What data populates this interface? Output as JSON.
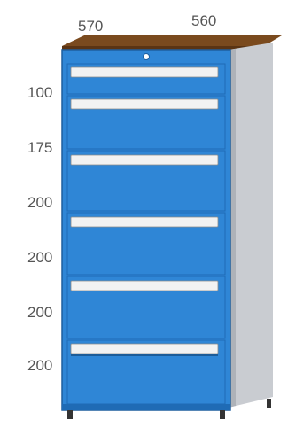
{
  "dimensions": {
    "width": "570",
    "depth": "560"
  },
  "drawer_heights": [
    "100",
    "175",
    "200",
    "200",
    "200",
    "200"
  ],
  "colors": {
    "body": "#2f86d6",
    "body_dark": "#1f6bb5",
    "side": "#c9ccd1",
    "worktop": "#8b5a2b",
    "handle": "#f2f2f2",
    "feet": "#333333"
  }
}
